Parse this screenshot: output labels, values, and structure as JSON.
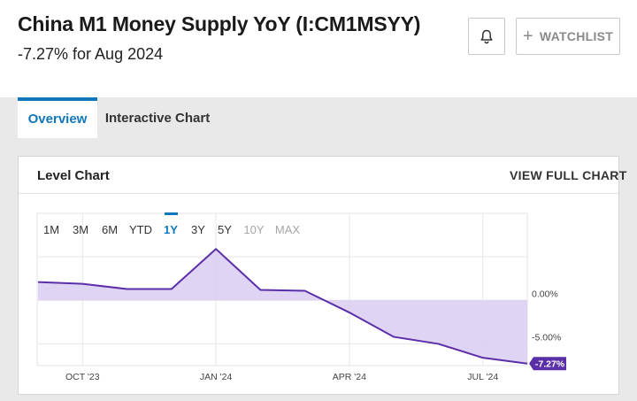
{
  "header": {
    "title": "China M1 Money Supply YoY (I:CM1MSYY)",
    "subtitle": "-7.27% for Aug 2024",
    "watchlist_label": "WATCHLIST",
    "watchlist_icon": "plus-icon",
    "alert_icon": "bell-icon"
  },
  "tabs": [
    {
      "label": "Overview",
      "active": true
    },
    {
      "label": "Interactive Chart",
      "active": false
    }
  ],
  "panel": {
    "title": "Level Chart",
    "view_full_label": "VIEW FULL CHART"
  },
  "range_buttons": [
    {
      "label": "1M",
      "state": "normal"
    },
    {
      "label": "3M",
      "state": "normal"
    },
    {
      "label": "6M",
      "state": "normal"
    },
    {
      "label": "YTD",
      "state": "normal"
    },
    {
      "label": "1Y",
      "state": "active"
    },
    {
      "label": "3Y",
      "state": "normal"
    },
    {
      "label": "5Y",
      "state": "normal"
    },
    {
      "label": "10Y",
      "state": "disabled"
    },
    {
      "label": "MAX",
      "state": "disabled"
    }
  ],
  "colors": {
    "accent": "#1177bb",
    "line": "#5b2fa8",
    "fill": "#d9cdf2",
    "badge": "#5b2fa8"
  },
  "chart_data": {
    "type": "area",
    "x": [
      "2023-09",
      "2023-10",
      "2023-11",
      "2023-12",
      "2024-01",
      "2024-02",
      "2024-03",
      "2024-04",
      "2024-05",
      "2024-06",
      "2024-07",
      "2024-08"
    ],
    "values": [
      2.1,
      1.9,
      1.3,
      1.3,
      5.9,
      1.2,
      1.1,
      -1.4,
      -4.2,
      -5.0,
      -6.6,
      -7.27
    ],
    "x_tick_labels": [
      "OCT '23",
      "JAN '24",
      "APR '24",
      "JUL '24"
    ],
    "y_tick_labels": [
      "0.00%",
      "-5.00%"
    ],
    "y_ticks": [
      0,
      -5
    ],
    "ylim": [
      -7.5,
      10
    ],
    "last_value_label": "-7.27%",
    "grid": true
  }
}
